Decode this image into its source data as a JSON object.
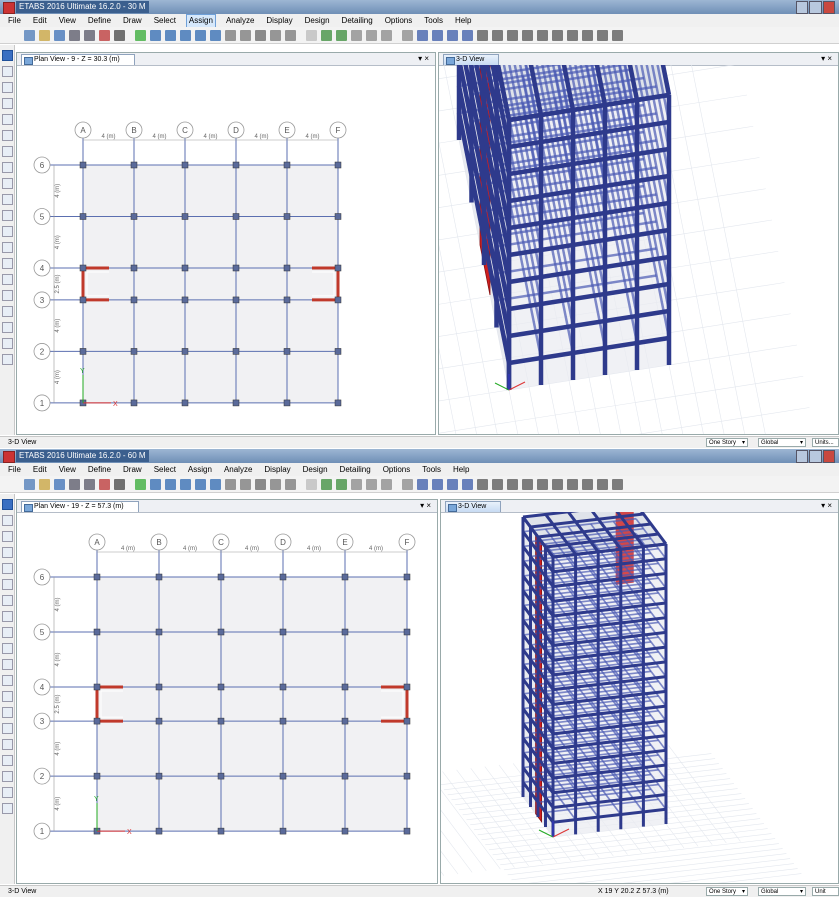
{
  "menu": [
    "File",
    "Edit",
    "View",
    "Define",
    "Draw",
    "Select",
    "Assign",
    "Analyze",
    "Display",
    "Design",
    "Detailing",
    "Options",
    "Tools",
    "Help"
  ],
  "menu_active": "Assign",
  "window1": {
    "title": "ETABS 2016 Ultimate 16.2.0 - 30 M",
    "plan_tab": "Plan View - 9 - Z = 30.3 (m)",
    "view3d_tab": "3-D View",
    "pane_close": "▾ ×",
    "status_text": "3-D View",
    "story_dropdown": "One Story",
    "coord_dropdown": "Global",
    "units_button": "Units..."
  },
  "window2": {
    "title": "ETABS 2016 Ultimate 16.2.0 - 60 M",
    "plan_tab": "Plan View - 19 - Z = 57.3 (m)",
    "view3d_tab": "3-D View",
    "pane_close": "▾ ×",
    "status_text": "3-D View",
    "coordinates": "X 19  Y 20.2  Z 57.3 (m)",
    "story_dropdown": "One Story",
    "coord_dropdown": "Global",
    "units_button": "Unit"
  },
  "grid": {
    "x_labels": [
      "A",
      "B",
      "C",
      "D",
      "E",
      "F"
    ],
    "y_labels": [
      "1",
      "2",
      "3",
      "4",
      "5",
      "6"
    ],
    "x_spacing": "4 (m)",
    "y_spacing": [
      "4 (m)",
      "4 (m)",
      "2.5 (m)",
      "4 (m)",
      "4 (m)"
    ]
  },
  "axis_labels": {
    "x": "X",
    "y": "Y"
  },
  "colors": {
    "frame": "#2e3a8c",
    "frame_light": "#4a5ab4",
    "shear_wall": "#d01f1f",
    "plan_grid": "#5b6fb0",
    "plan_fill": "#f1f1f3",
    "column_marker": "#5a6a9a",
    "wall_plan": "#c0392b"
  },
  "icons": [
    "pointer-icon",
    "new-icon",
    "open-icon",
    "save-icon",
    "undo-icon",
    "redo-icon",
    "pencil-icon",
    "lock-icon",
    "run-icon",
    "zoom-in-icon",
    "zoom-out-icon",
    "pan-icon",
    "3d-icon"
  ]
}
